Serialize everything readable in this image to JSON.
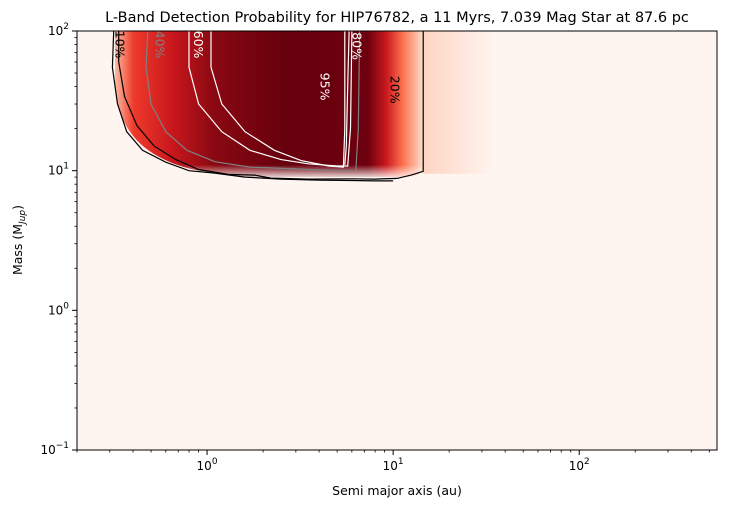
{
  "chart_data": {
    "type": "heatmap",
    "title": "L-Band Detection Probability for HIP76782, a 11 Myrs, 7.039 Mag Star at 87.6 pc",
    "xlabel": "Semi major axis (au)",
    "ylabel_main": "Mass (M",
    "ylabel_sub": "Jup",
    "ylabel_tail": ")",
    "x_scale": "log",
    "y_scale": "log",
    "xlim": [
      0.2,
      550
    ],
    "ylim": [
      0.1,
      100
    ],
    "x_ticks": [
      {
        "value": 1,
        "base": "10",
        "exp": "0"
      },
      {
        "value": 10,
        "base": "10",
        "exp": "1"
      },
      {
        "value": 100,
        "base": "10",
        "exp": "2"
      }
    ],
    "y_ticks": [
      {
        "value": 0.1,
        "base": "10",
        "exp": "−1"
      },
      {
        "value": 1,
        "base": "10",
        "exp": "0"
      },
      {
        "value": 10,
        "base": "10",
        "exp": "1"
      },
      {
        "value": 100,
        "base": "10",
        "exp": "2"
      }
    ],
    "colormap": "Reds",
    "background_color": "#fff5f0",
    "contour_levels": [
      {
        "label": "10%",
        "color": "#000000",
        "label_at": {
          "a": 0.34,
          "m": 80
        },
        "label_rotated": true,
        "points": [
          [
            0.315,
            100
          ],
          [
            0.31,
            55
          ],
          [
            0.33,
            30
          ],
          [
            0.37,
            19
          ],
          [
            0.45,
            14
          ],
          [
            0.6,
            11.5
          ],
          [
            0.8,
            10
          ],
          [
            1.1,
            9.6
          ],
          [
            1.6,
            9.0
          ],
          [
            2.5,
            8.7
          ],
          [
            4,
            8.55
          ],
          [
            6,
            8.5
          ],
          [
            8,
            8.45
          ],
          [
            10,
            8.45
          ]
        ]
      },
      {
        "label": "20%",
        "color": "#000000",
        "label_at": {
          "a": 10.2,
          "m": 38
        },
        "label_rotated": true,
        "points": [
          [
            0.335,
            100
          ],
          [
            0.335,
            60
          ],
          [
            0.36,
            34
          ],
          [
            0.42,
            21
          ],
          [
            0.52,
            15
          ],
          [
            0.68,
            12
          ],
          [
            0.9,
            10.2
          ],
          [
            1.3,
            9.4
          ],
          [
            1.8,
            9.3
          ],
          [
            2.2,
            8.85
          ],
          [
            3.5,
            8.7
          ],
          [
            6,
            8.75
          ],
          [
            8,
            8.7
          ],
          [
            10.5,
            8.8
          ],
          [
            12.5,
            9.3
          ],
          [
            14.5,
            9.9
          ],
          [
            14.5,
            35
          ],
          [
            14.5,
            100
          ]
        ]
      },
      {
        "label": "40%",
        "color": "#808080",
        "label_at": {
          "a": 0.56,
          "m": 80
        },
        "label_rotated": true,
        "points": [
          [
            0.48,
            100
          ],
          [
            0.47,
            55
          ],
          [
            0.5,
            30
          ],
          [
            0.6,
            19
          ],
          [
            0.78,
            14
          ],
          [
            1.1,
            11.6
          ],
          [
            1.7,
            10.6
          ],
          [
            3,
            10.3
          ],
          [
            5,
            10.0
          ],
          [
            6.3,
            10.0
          ],
          [
            6.5,
            20
          ],
          [
            6.6,
            100
          ]
        ]
      },
      {
        "label": "60%",
        "color": "#ffffff",
        "label_at": {
          "a": 0.9,
          "m": 80
        },
        "label_rotated": true,
        "points": [
          [
            0.8,
            100
          ],
          [
            0.8,
            55
          ],
          [
            0.9,
            30
          ],
          [
            1.2,
            19
          ],
          [
            1.7,
            14
          ],
          [
            2.5,
            12
          ],
          [
            3.5,
            11.2
          ],
          [
            5,
            10.8
          ],
          [
            5.7,
            10.8
          ],
          [
            5.9,
            20
          ],
          [
            6,
            100
          ]
        ]
      },
      {
        "label": "80%",
        "color": "#ffffff",
        "label_at": {
          "a": 6.4,
          "m": 78
        },
        "label_rotated": true,
        "points": [
          [
            5.8,
            100
          ],
          [
            5.7,
            40
          ],
          [
            5.6,
            15
          ],
          [
            5.5,
            11
          ]
        ]
      },
      {
        "label": "95%",
        "color": "#ffffff",
        "label_at": {
          "a": 4.3,
          "m": 40
        },
        "label_rotated": true,
        "points": [
          [
            1.05,
            100
          ],
          [
            1.05,
            55
          ],
          [
            1.2,
            30
          ],
          [
            1.6,
            19
          ],
          [
            2.3,
            14
          ],
          [
            3.2,
            11.8
          ],
          [
            4.5,
            10.8
          ],
          [
            5.4,
            10.6
          ],
          [
            5.5,
            20
          ],
          [
            5.5,
            100
          ]
        ]
      }
    ],
    "detection_region_profile": {
      "mass_threshold": 9.0,
      "a_inner": 0.32,
      "a_outer": 14.5,
      "dark_core": [
        1.1,
        5.5
      ]
    }
  }
}
